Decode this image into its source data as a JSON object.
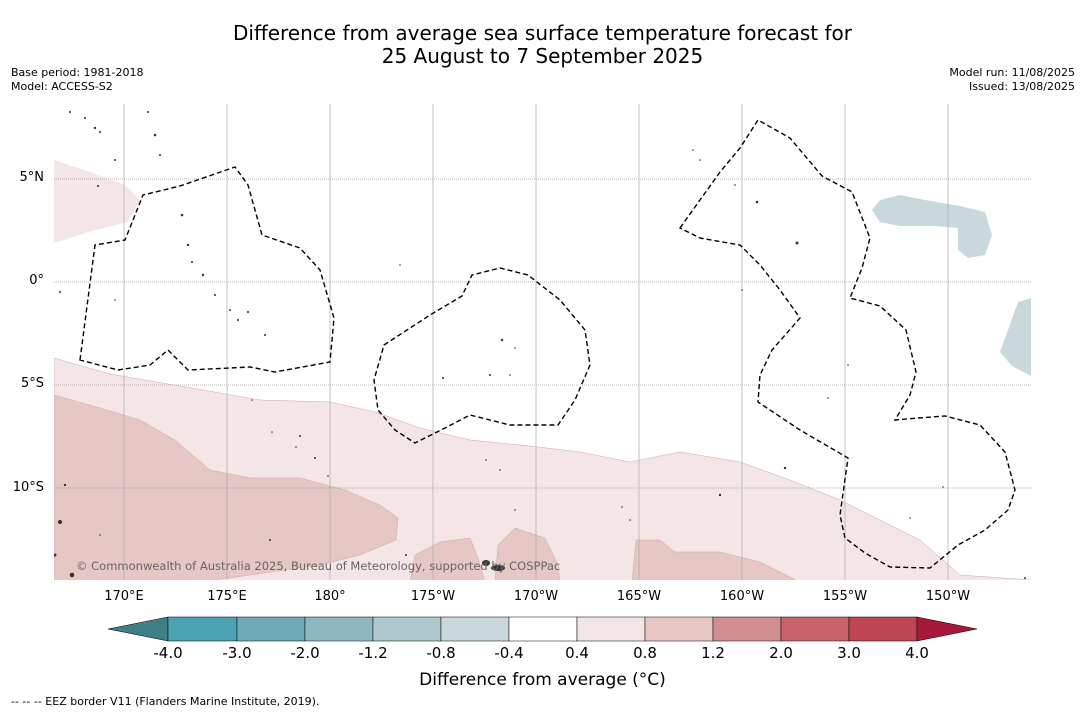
{
  "header": {
    "title_line1": "Difference from average sea surface temperature forecast for",
    "title_line2": "25 August to 7 September 2025",
    "base_period": "Base period: 1981-2018",
    "model": "Model: ACCESS-S2",
    "model_run": "Model run: 11/08/2025",
    "issued": "Issued: 13/08/2025"
  },
  "map": {
    "lat_labels": [
      "5°N",
      "0°",
      "5°S",
      "10°S"
    ],
    "lon_labels": [
      "170°E",
      "175°E",
      "180°",
      "175°W",
      "170°W",
      "165°W",
      "160°W",
      "155°W",
      "150°W"
    ],
    "copyright": "© Commonwealth of Australia 2025, Bureau of Meteorology, supported by COSPPac",
    "colors": {
      "anomaly_0_4_to_0_8": "#f4e6e6",
      "anomaly_0_8_to_1_2": "#e6c7c4",
      "anomaly_neg_0_8_to_neg_0_4": "#c9d8dc",
      "land": "#555555"
    }
  },
  "colorbar": {
    "title": "Difference from average (°C)",
    "tick_labels": [
      "-4.0",
      "-3.0",
      "-2.0",
      "-1.2",
      "-0.8",
      "-0.4",
      "0.4",
      "0.8",
      "1.2",
      "2.0",
      "3.0",
      "4.0"
    ],
    "colors": [
      "#3e7f86",
      "#4aa2b2",
      "#6eabb9",
      "#8fb7c2",
      "#adc8ce",
      "#c9d8dc",
      "#ffffff",
      "#f4e6e6",
      "#e6c7c4",
      "#d38e93",
      "#c8636b",
      "#bd4554",
      "#a8183a"
    ]
  },
  "footer": {
    "eez_legend": "--  --  -- EEZ border V11 (Flanders Marine Institute, 2019)."
  }
}
